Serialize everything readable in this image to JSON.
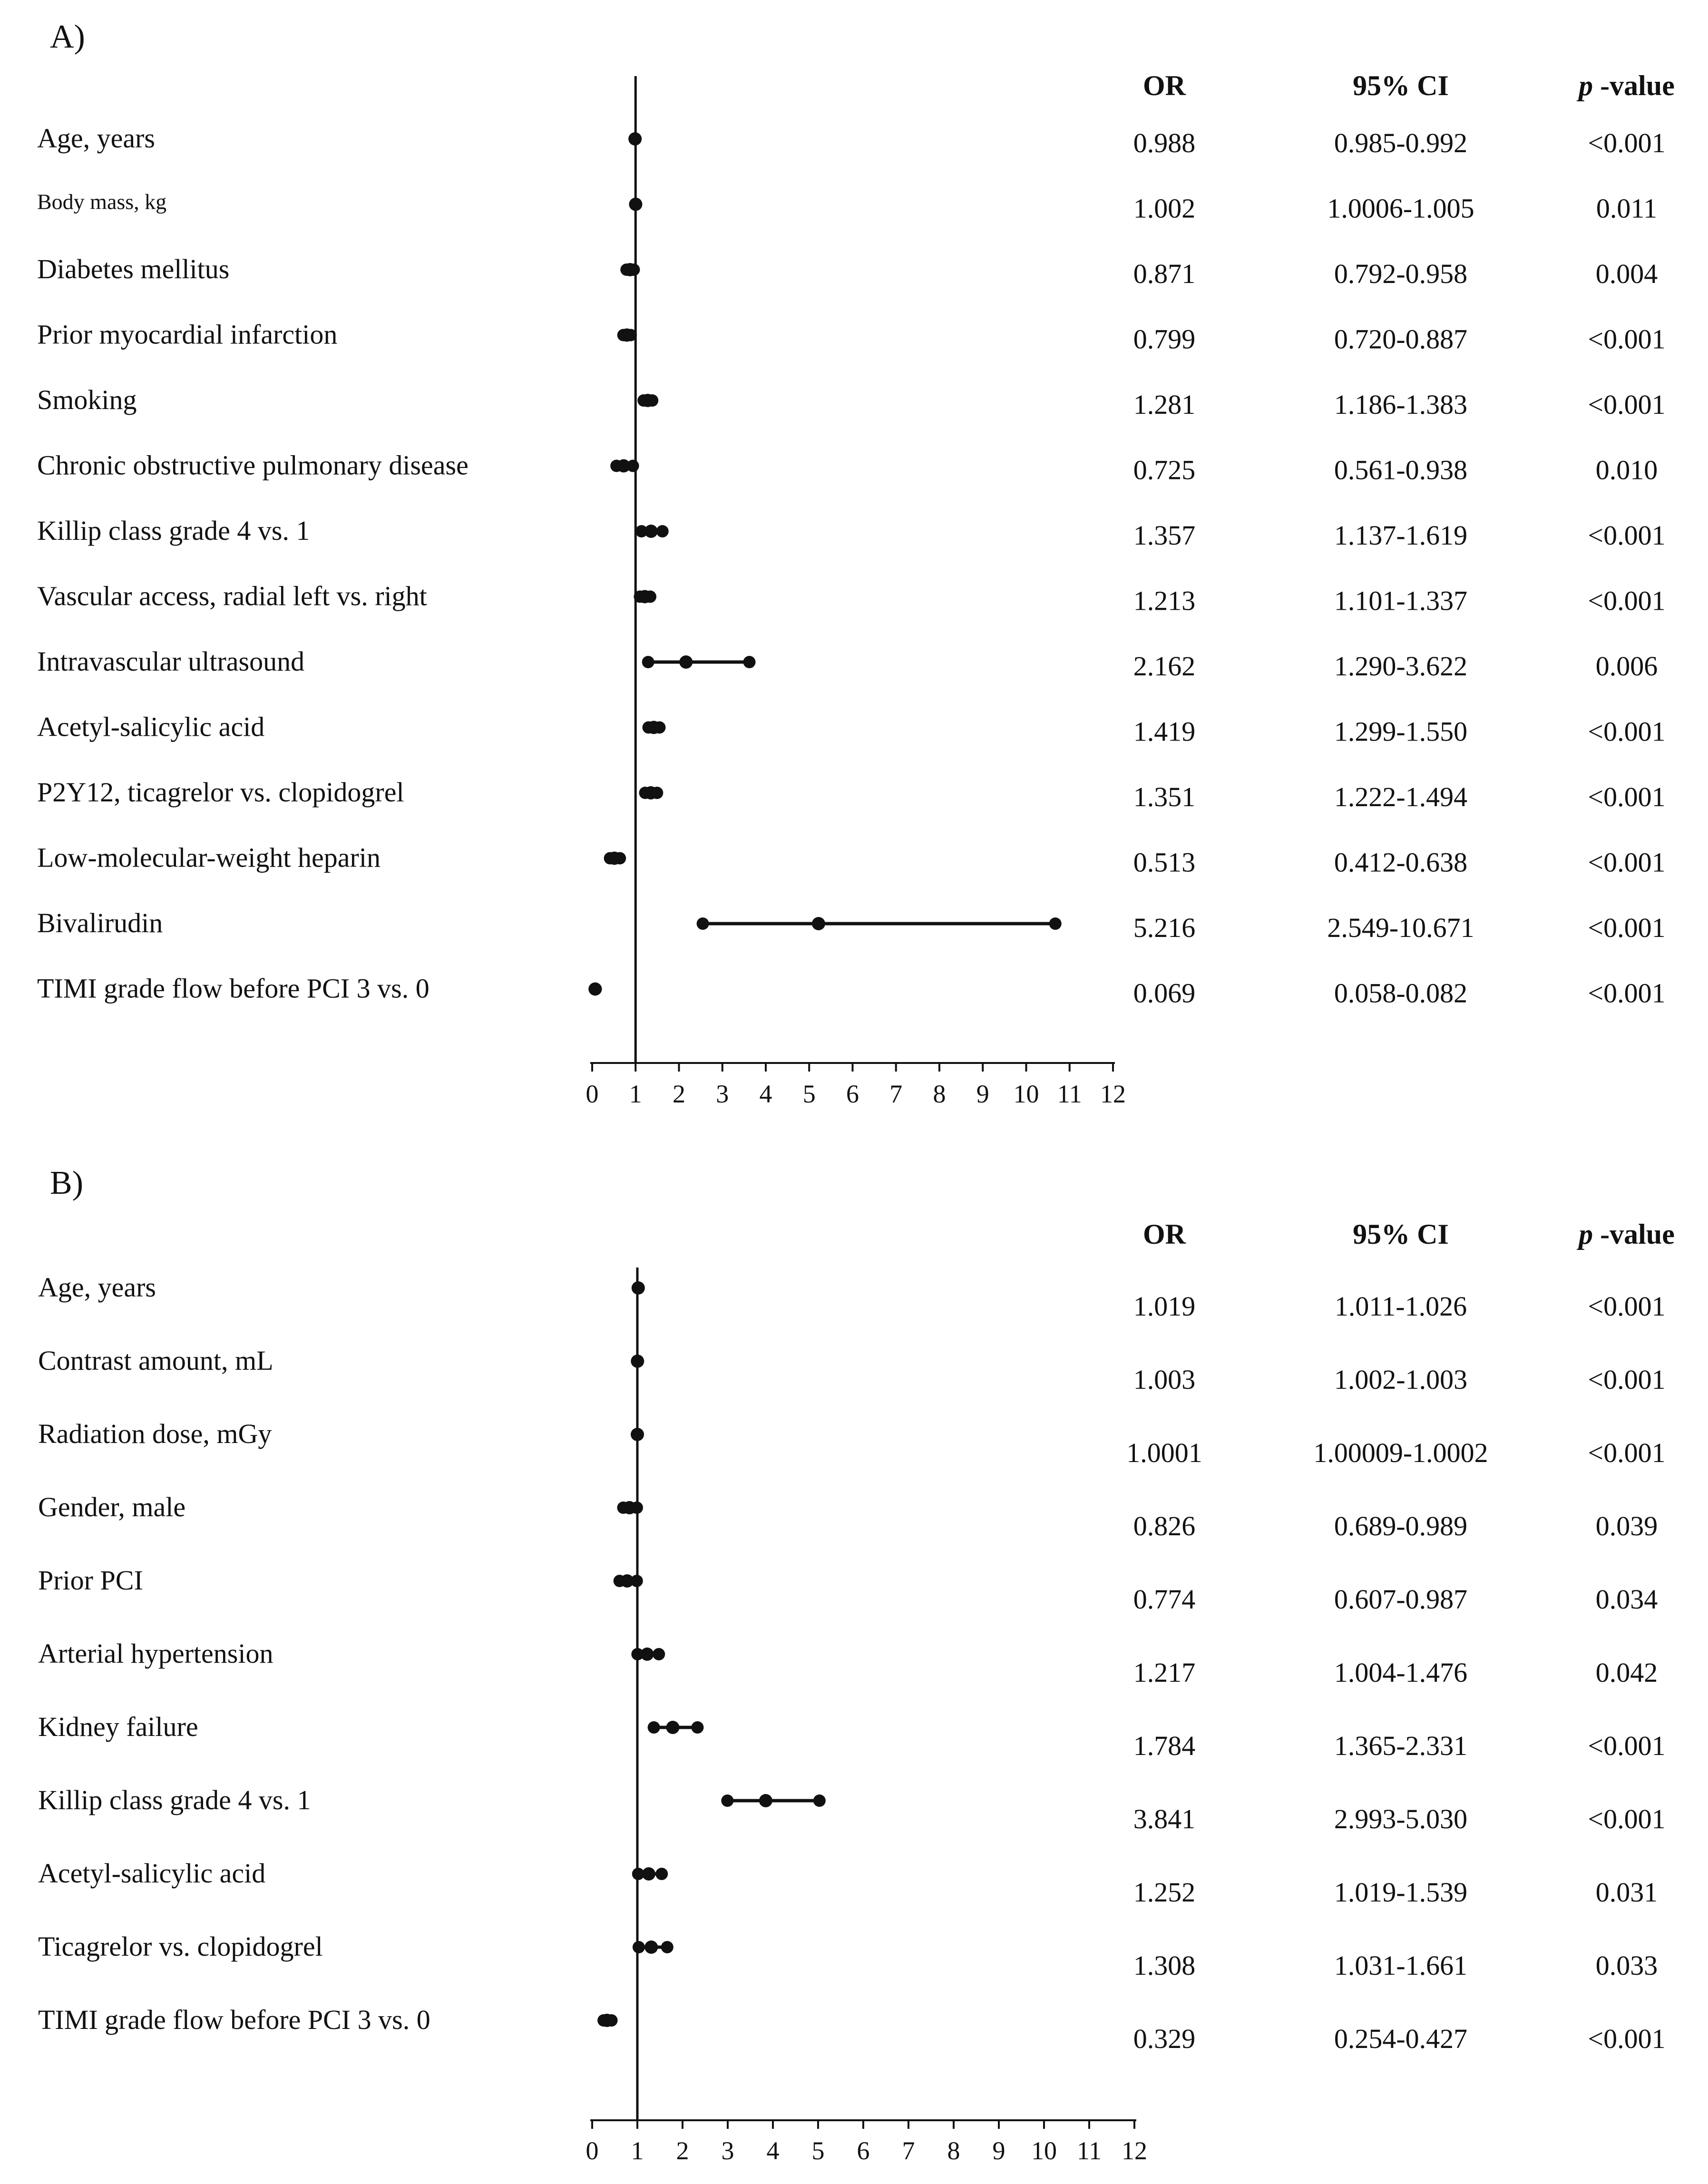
{
  "chart_data": [
    {
      "type": "forest",
      "title": "A)",
      "columns": {
        "or": "OR",
        "ci": "95% CI",
        "p_italic": "p",
        "p_rest": " -value"
      },
      "xlim": [
        0,
        12
      ],
      "ticks": [
        "0",
        "1",
        "2",
        "3",
        "4",
        "5",
        "6",
        "7",
        "8",
        "9",
        "10",
        "11",
        "12"
      ],
      "reference_line": 1,
      "rows": [
        {
          "label": "Age, years",
          "or": 0.988,
          "lo": 0.985,
          "hi": 0.992,
          "or_text": "0.988",
          "ci_text": "0.985-0.992",
          "p_text": "<0.001"
        },
        {
          "label": "Body mass, kg",
          "small": true,
          "or": 1.002,
          "lo": 1.0006,
          "hi": 1.005,
          "or_text": "1.002",
          "ci_text": "1.0006-1.005",
          "p_text": "0.011"
        },
        {
          "label": "Diabetes mellitus",
          "or": 0.871,
          "lo": 0.792,
          "hi": 0.958,
          "or_text": "0.871",
          "ci_text": "0.792-0.958",
          "p_text": "0.004"
        },
        {
          "label": "Prior myocardial infarction",
          "or": 0.799,
          "lo": 0.72,
          "hi": 0.887,
          "or_text": "0.799",
          "ci_text": "0.720-0.887",
          "p_text": "<0.001"
        },
        {
          "label": "Smoking",
          "or": 1.281,
          "lo": 1.186,
          "hi": 1.383,
          "or_text": "1.281",
          "ci_text": "1.186-1.383",
          "p_text": "<0.001"
        },
        {
          "label": "Chronic obstructive pulmonary disease",
          "or": 0.725,
          "lo": 0.561,
          "hi": 0.938,
          "or_text": "0.725",
          "ci_text": "0.561-0.938",
          "p_text": "0.010"
        },
        {
          "label": "Killip class grade 4 vs. 1",
          "or": 1.357,
          "lo": 1.137,
          "hi": 1.619,
          "or_text": "1.357",
          "ci_text": "1.137-1.619",
          "p_text": "<0.001"
        },
        {
          "label": "Vascular access, radial left vs. right",
          "or": 1.213,
          "lo": 1.101,
          "hi": 1.337,
          "or_text": "1.213",
          "ci_text": "1.101-1.337",
          "p_text": "<0.001"
        },
        {
          "label": "Intravascular ultrasound",
          "or": 2.162,
          "lo": 1.29,
          "hi": 3.622,
          "or_text": "2.162",
          "ci_text": "1.290-3.622",
          "p_text": "0.006"
        },
        {
          "label": "Acetyl-salicylic acid",
          "or": 1.419,
          "lo": 1.299,
          "hi": 1.55,
          "or_text": "1.419",
          "ci_text": "1.299-1.550",
          "p_text": "<0.001"
        },
        {
          "label": "P2Y12, ticagrelor vs. clopidogrel",
          "or": 1.351,
          "lo": 1.222,
          "hi": 1.494,
          "or_text": "1.351",
          "ci_text": "1.222-1.494",
          "p_text": "<0.001"
        },
        {
          "label": "Low-molecular-weight heparin",
          "or": 0.513,
          "lo": 0.412,
          "hi": 0.638,
          "or_text": "0.513",
          "ci_text": "0.412-0.638",
          "p_text": "<0.001"
        },
        {
          "label": "Bivalirudin",
          "or": 5.216,
          "lo": 2.549,
          "hi": 10.671,
          "or_text": "5.216",
          "ci_text": "2.549-10.671",
          "p_text": "<0.001"
        },
        {
          "label": "TIMI grade flow before PCI 3 vs. 0",
          "or": 0.069,
          "lo": 0.058,
          "hi": 0.082,
          "or_text": "0.069",
          "ci_text": "0.058-0.082",
          "p_text": "<0.001"
        }
      ]
    },
    {
      "type": "forest",
      "title": "B)",
      "columns": {
        "or": "OR",
        "ci": "95% CI",
        "p_italic": "p",
        "p_rest": " -value"
      },
      "xlim": [
        0,
        12
      ],
      "ticks": [
        "0",
        "1",
        "2",
        "3",
        "4",
        "5",
        "6",
        "7",
        "8",
        "9",
        "10",
        "11",
        "12"
      ],
      "reference_line": 1,
      "rows": [
        {
          "label": "Age, years",
          "or": 1.019,
          "lo": 1.011,
          "hi": 1.026,
          "or_text": "1.019",
          "ci_text": "1.011-1.026",
          "p_text": "<0.001"
        },
        {
          "label": "Contrast amount, mL",
          "or": 1.003,
          "lo": 1.002,
          "hi": 1.003,
          "or_text": "1.003",
          "ci_text": "1.002-1.003",
          "p_text": "<0.001"
        },
        {
          "label": "Radiation dose, mGy",
          "or": 1.0001,
          "lo": 1.00009,
          "hi": 1.0002,
          "or_text": "1.0001",
          "ci_text": "1.00009-1.0002",
          "p_text": "<0.001"
        },
        {
          "label": "Gender, male",
          "or": 0.826,
          "lo": 0.689,
          "hi": 0.989,
          "or_text": "0.826",
          "ci_text": "0.689-0.989",
          "p_text": "0.039"
        },
        {
          "label": "Prior PCI",
          "or": 0.774,
          "lo": 0.607,
          "hi": 0.987,
          "or_text": "0.774",
          "ci_text": "0.607-0.987",
          "p_text": "0.034"
        },
        {
          "label": "Arterial hypertension",
          "or": 1.217,
          "lo": 1.004,
          "hi": 1.476,
          "or_text": "1.217",
          "ci_text": "1.004-1.476",
          "p_text": "0.042"
        },
        {
          "label": "Kidney failure",
          "or": 1.784,
          "lo": 1.365,
          "hi": 2.331,
          "or_text": "1.784",
          "ci_text": "1.365-2.331",
          "p_text": "<0.001"
        },
        {
          "label": "Killip class grade 4 vs. 1",
          "or": 3.841,
          "lo": 2.993,
          "hi": 5.03,
          "or_text": "3.841",
          "ci_text": "2.993-5.030",
          "p_text": "<0.001"
        },
        {
          "label": "Acetyl-salicylic acid",
          "or": 1.252,
          "lo": 1.019,
          "hi": 1.539,
          "or_text": "1.252",
          "ci_text": "1.019-1.539",
          "p_text": "0.031"
        },
        {
          "label": "Ticagrelor vs. clopidogrel",
          "or": 1.308,
          "lo": 1.031,
          "hi": 1.661,
          "or_text": "1.308",
          "ci_text": "1.031-1.661",
          "p_text": "0.033"
        },
        {
          "label": "TIMI grade flow before PCI 3 vs. 0",
          "or": 0.329,
          "lo": 0.254,
          "hi": 0.427,
          "or_text": "0.329",
          "ci_text": "0.254-0.427",
          "p_text": "<0.001"
        }
      ]
    }
  ],
  "style": {
    "ink": "#111111",
    "background": "#ffffff"
  }
}
